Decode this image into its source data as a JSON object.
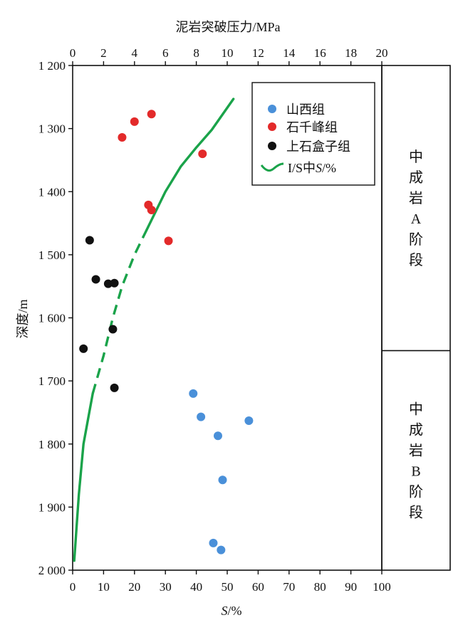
{
  "chart_data": {
    "type": "scatter",
    "title": "",
    "xlabel_bottom_prefix": "S",
    "xlabel_bottom_suffix": "/%",
    "xlabel_top": "泥岩突破压力/MPa",
    "ylabel": "深度/m",
    "x_bottom_range": [
      0,
      100
    ],
    "x_bottom_ticks": [
      "0",
      "10",
      "20",
      "30",
      "40",
      "50",
      "60",
      "70",
      "80",
      "90",
      "100"
    ],
    "x_top_range": [
      0,
      20
    ],
    "x_top_ticks": [
      "0",
      "2",
      "4",
      "6",
      "8",
      "10",
      "12",
      "14",
      "16",
      "18",
      "20"
    ],
    "y_range": [
      1200,
      2000
    ],
    "y_inverted": true,
    "y_ticks": [
      "1 200",
      "1 300",
      "1 400",
      "1 500",
      "1 600",
      "1 700",
      "1 800",
      "1 900",
      "2 000"
    ],
    "y_tick_values": [
      1200,
      1300,
      1400,
      1500,
      1600,
      1700,
      1800,
      1900,
      2000
    ],
    "grid": false,
    "legend_position": "top-right",
    "series": [
      {
        "name": "山西组",
        "color": "#4a90d9",
        "axis": "top",
        "points": [
          {
            "x": 7.8,
            "y": 1720
          },
          {
            "x": 8.3,
            "y": 1757
          },
          {
            "x": 11.4,
            "y": 1763
          },
          {
            "x": 9.4,
            "y": 1787
          },
          {
            "x": 9.7,
            "y": 1857
          },
          {
            "x": 9.1,
            "y": 1957
          },
          {
            "x": 9.6,
            "y": 1968
          }
        ]
      },
      {
        "name": "石千峰组",
        "color": "#e32a2a",
        "axis": "top",
        "points": [
          {
            "x": 3.2,
            "y": 1314
          },
          {
            "x": 4.0,
            "y": 1289
          },
          {
            "x": 5.1,
            "y": 1277
          },
          {
            "x": 8.4,
            "y": 1340
          },
          {
            "x": 4.9,
            "y": 1421
          },
          {
            "x": 5.1,
            "y": 1429
          },
          {
            "x": 6.2,
            "y": 1478
          }
        ]
      },
      {
        "name": "上石盒子组",
        "color": "#111111",
        "axis": "top",
        "points": [
          {
            "x": 1.1,
            "y": 1477
          },
          {
            "x": 1.5,
            "y": 1539
          },
          {
            "x": 2.3,
            "y": 1546
          },
          {
            "x": 2.7,
            "y": 1545
          },
          {
            "x": 2.6,
            "y": 1618
          },
          {
            "x": 0.7,
            "y": 1649
          },
          {
            "x": 2.7,
            "y": 1711
          }
        ]
      },
      {
        "name_prefix": "I/S中",
        "name_italic": "S",
        "name_suffix": "/%",
        "color": "#1aa34a",
        "axis": "bottom",
        "style": "line",
        "solid_segments": [
          [
            [
              0.5,
              1985
            ],
            [
              2,
              1880
            ],
            [
              3.5,
              1800
            ],
            [
              5,
              1760
            ],
            [
              6.5,
              1720
            ]
          ],
          [
            [
              24,
              1460
            ],
            [
              30,
              1400
            ],
            [
              35,
              1360
            ],
            [
              40,
              1330
            ],
            [
              45,
              1302
            ],
            [
              52,
              1253
            ]
          ]
        ],
        "dashed_segment": [
          [
            6.5,
            1720
          ],
          [
            10,
            1660
          ],
          [
            13,
            1600
          ],
          [
            16,
            1550
          ],
          [
            20,
            1500
          ],
          [
            24,
            1460
          ]
        ]
      }
    ],
    "stages": [
      {
        "chars": [
          "中",
          "成",
          "岩",
          "A",
          "阶",
          "段"
        ],
        "depth_range": [
          1200,
          1652
        ]
      },
      {
        "chars": [
          "中",
          "成",
          "岩",
          "B",
          "阶",
          "段"
        ],
        "depth_range": [
          1652,
          2000
        ]
      }
    ]
  }
}
